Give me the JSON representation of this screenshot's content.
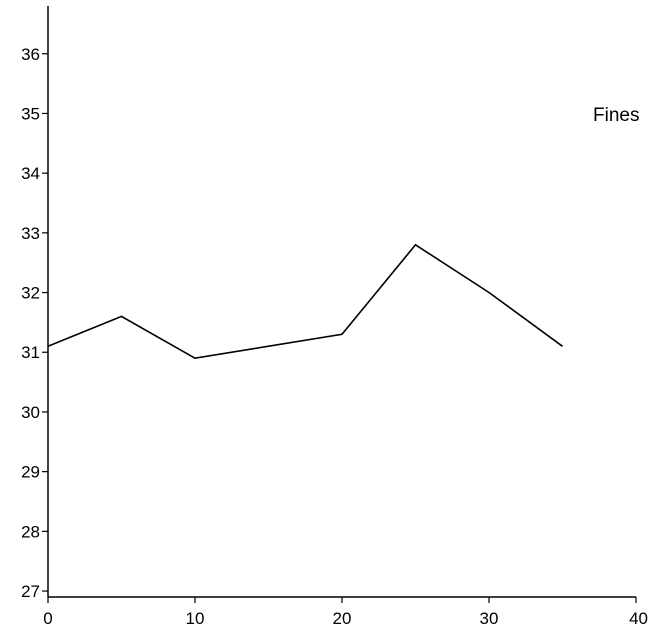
{
  "chart_data": {
    "type": "line",
    "x": [
      0,
      5,
      10,
      20,
      25,
      30,
      35
    ],
    "series": [
      {
        "name": "Fines",
        "values": [
          31.1,
          31.6,
          30.9,
          31.3,
          32.8,
          32.0,
          31.1
        ],
        "color": "#000000"
      }
    ],
    "xlim": [
      0,
      40
    ],
    "ylim": [
      26.9,
      36.8
    ],
    "xticks": [
      0,
      10,
      20,
      30,
      40
    ],
    "yticks": [
      27,
      28,
      29,
      30,
      31,
      32,
      33,
      34,
      35,
      36
    ],
    "grid": false,
    "legend_position": "right"
  },
  "labels": {
    "xticks": [
      "0",
      "10",
      "20",
      "30",
      "40"
    ],
    "yticks": [
      "27",
      "28",
      "29",
      "30",
      "31",
      "32",
      "33",
      "34",
      "35",
      "36"
    ],
    "legend": "Fines"
  }
}
